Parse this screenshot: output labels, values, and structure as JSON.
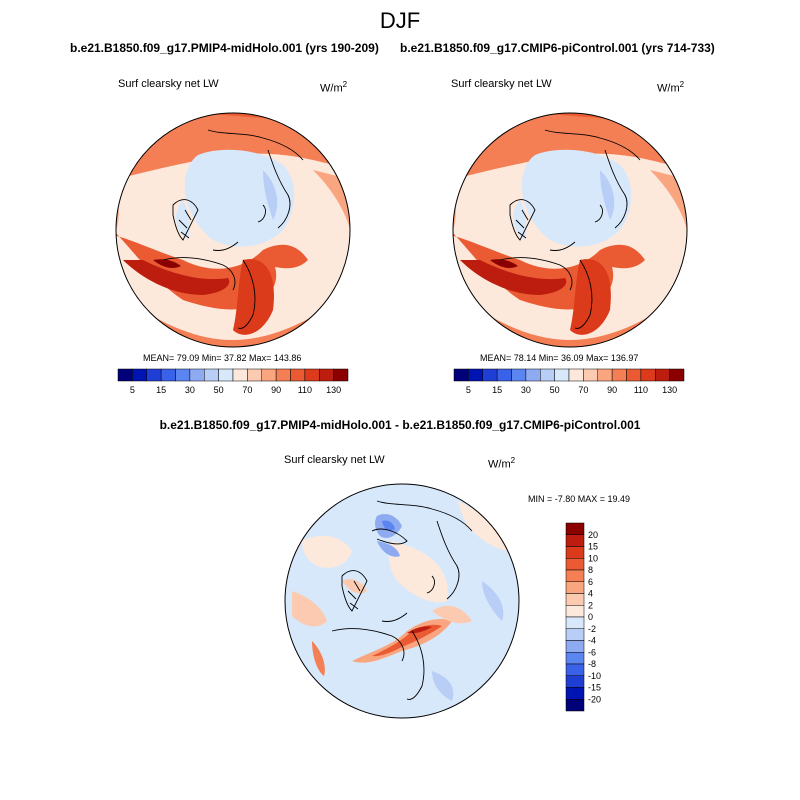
{
  "title": "DJF",
  "panels": [
    {
      "run_title": "b.e21.B1850.f09_g17.PMIP4-midHolo.001 (yrs 190-209)",
      "variable": "Surf clearsky net LW",
      "units_base": "W/m",
      "units_exp": "2",
      "stats": {
        "mean": "79.09",
        "min": "37.82",
        "max": "143.86"
      },
      "stats_text": "MEAN=  79.09   Min=  37.82   Max= 143.86"
    },
    {
      "run_title": "b.e21.B1850.f09_g17.CMIP6-piControl.001 (yrs 714-733)",
      "variable": "Surf clearsky net LW",
      "units_base": "W/m",
      "units_exp": "2",
      "stats": {
        "mean": "78.14",
        "min": "36.09",
        "max": "136.97"
      },
      "stats_text": "MEAN=  78.14   Min=  36.09   Max= 136.97"
    }
  ],
  "colorbar_top": {
    "colors": [
      "#000078",
      "#0014b4",
      "#1f3fd4",
      "#3a62e8",
      "#5b85f0",
      "#8eabf2",
      "#b8cef6",
      "#d8e8fb",
      "#fde8dc",
      "#fccab0",
      "#f9a57f",
      "#f47f55",
      "#ea5b33",
      "#db3a1b",
      "#bd1d0e",
      "#8a0000"
    ],
    "labels": [
      "5",
      "15",
      "30",
      "50",
      "70",
      "90",
      "110",
      "130"
    ]
  },
  "difference": {
    "title": "b.e21.B1850.f09_g17.PMIP4-midHolo.001 - b.e21.B1850.f09_g17.CMIP6-piControl.001",
    "variable": "Surf clearsky net LW",
    "units_base": "W/m",
    "units_exp": "2",
    "min": "-7.80",
    "max": "19.49",
    "minmax_text": "MIN =  -7.80 MAX =  19.49",
    "colorbar": {
      "colors": [
        "#8a0000",
        "#bd1d0e",
        "#db3a1b",
        "#ea5b33",
        "#f47f55",
        "#f9a57f",
        "#fccab0",
        "#fde8dc",
        "#d8e8fb",
        "#b8cef6",
        "#8eabf2",
        "#5b85f0",
        "#3a62e8",
        "#1f3fd4",
        "#0014b4",
        "#000078"
      ],
      "labels": [
        "20",
        "15",
        "10",
        "8",
        "6",
        "4",
        "2",
        "0",
        "-2",
        "-4",
        "-6",
        "-8",
        "-10",
        "-15",
        "-20"
      ]
    }
  }
}
